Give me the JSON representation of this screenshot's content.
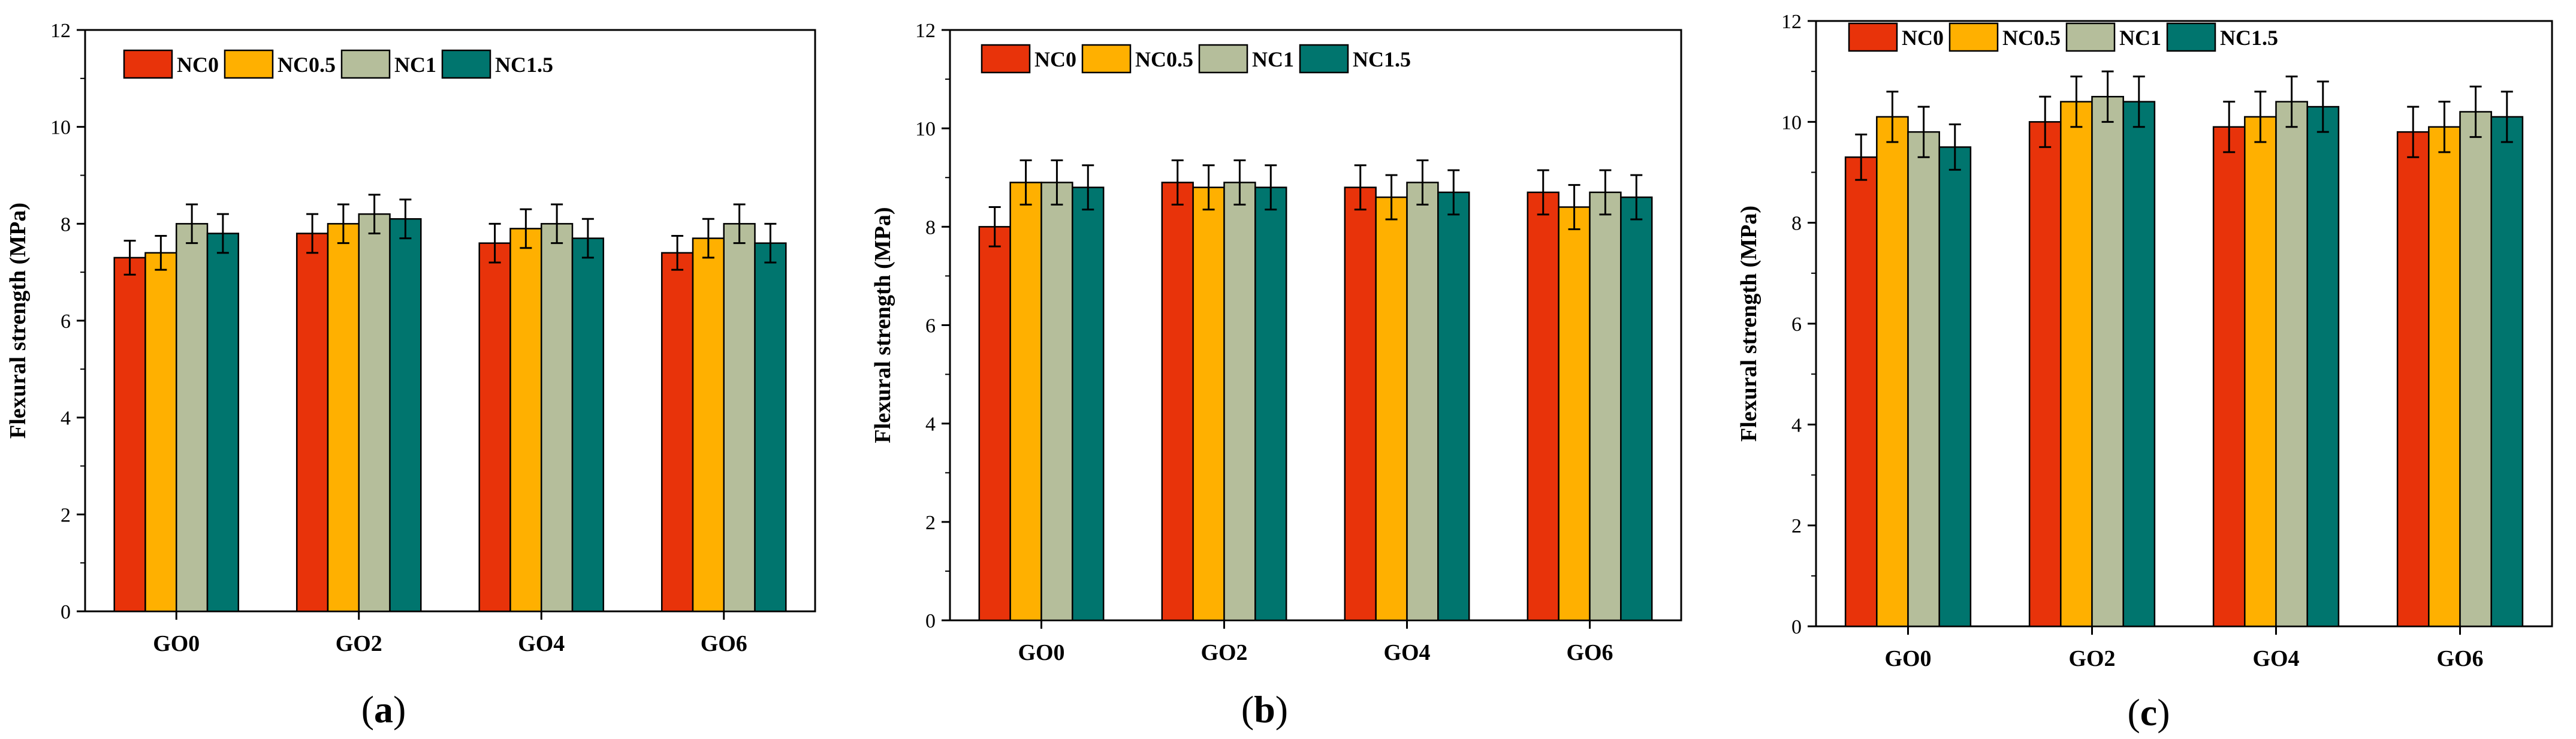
{
  "chart_data": [
    {
      "type": "bar",
      "panel_label": "a",
      "categories": [
        "GO0",
        "GO2",
        "GO4",
        "GO6"
      ],
      "ylabel": "Flexural strength (MPa)",
      "ylim": [
        0,
        12
      ],
      "yticks": [
        0,
        2,
        4,
        6,
        8,
        10,
        12
      ],
      "legend": "top-left",
      "series": [
        {
          "name": "NC0",
          "color": "#e8330a",
          "values": [
            7.3,
            7.8,
            7.6,
            7.4
          ],
          "errors": [
            0.35,
            0.4,
            0.4,
            0.35
          ]
        },
        {
          "name": "NC0.5",
          "color": "#ffb000",
          "values": [
            7.4,
            8.0,
            7.9,
            7.7
          ],
          "errors": [
            0.35,
            0.4,
            0.4,
            0.4
          ]
        },
        {
          "name": "NC1",
          "color": "#b5be9b",
          "values": [
            8.0,
            8.2,
            8.0,
            8.0
          ],
          "errors": [
            0.4,
            0.4,
            0.4,
            0.4
          ]
        },
        {
          "name": "NC1.5",
          "color": "#00756e",
          "values": [
            7.8,
            8.1,
            7.7,
            7.6
          ],
          "errors": [
            0.4,
            0.4,
            0.4,
            0.4
          ]
        }
      ]
    },
    {
      "type": "bar",
      "panel_label": "b",
      "categories": [
        "GO0",
        "GO2",
        "GO4",
        "GO6"
      ],
      "ylabel": "Flexural strength (MPa)",
      "ylim": [
        0,
        12
      ],
      "yticks": [
        0,
        2,
        4,
        6,
        8,
        10,
        12
      ],
      "legend": "top-left",
      "series": [
        {
          "name": "NC0",
          "color": "#e8330a",
          "values": [
            8.0,
            8.9,
            8.8,
            8.7
          ],
          "errors": [
            0.4,
            0.45,
            0.45,
            0.45
          ]
        },
        {
          "name": "NC0.5",
          "color": "#ffb000",
          "values": [
            8.9,
            8.8,
            8.6,
            8.4
          ],
          "errors": [
            0.45,
            0.45,
            0.45,
            0.45
          ]
        },
        {
          "name": "NC1",
          "color": "#b5be9b",
          "values": [
            8.9,
            8.9,
            8.9,
            8.7
          ],
          "errors": [
            0.45,
            0.45,
            0.45,
            0.45
          ]
        },
        {
          "name": "NC1.5",
          "color": "#00756e",
          "values": [
            8.8,
            8.8,
            8.7,
            8.6
          ],
          "errors": [
            0.45,
            0.45,
            0.45,
            0.45
          ]
        }
      ]
    },
    {
      "type": "bar",
      "panel_label": "c",
      "categories": [
        "GO0",
        "GO2",
        "GO4",
        "GO6"
      ],
      "ylabel": "Flexural strength (MPa)",
      "ylim": [
        0,
        12
      ],
      "yticks": [
        0,
        2,
        4,
        6,
        8,
        10,
        12
      ],
      "legend": "top-left",
      "series": [
        {
          "name": "NC0",
          "color": "#e8330a",
          "values": [
            9.3,
            10.0,
            9.9,
            9.8
          ],
          "errors": [
            0.45,
            0.5,
            0.5,
            0.5
          ]
        },
        {
          "name": "NC0.5",
          "color": "#ffb000",
          "values": [
            10.1,
            10.4,
            10.1,
            9.9
          ],
          "errors": [
            0.5,
            0.5,
            0.5,
            0.5
          ]
        },
        {
          "name": "NC1",
          "color": "#b5be9b",
          "values": [
            9.8,
            10.5,
            10.4,
            10.2
          ],
          "errors": [
            0.5,
            0.5,
            0.5,
            0.5
          ]
        },
        {
          "name": "NC1.5",
          "color": "#00756e",
          "values": [
            9.5,
            10.4,
            10.3,
            10.1
          ],
          "errors": [
            0.45,
            0.5,
            0.5,
            0.5
          ]
        }
      ]
    }
  ]
}
